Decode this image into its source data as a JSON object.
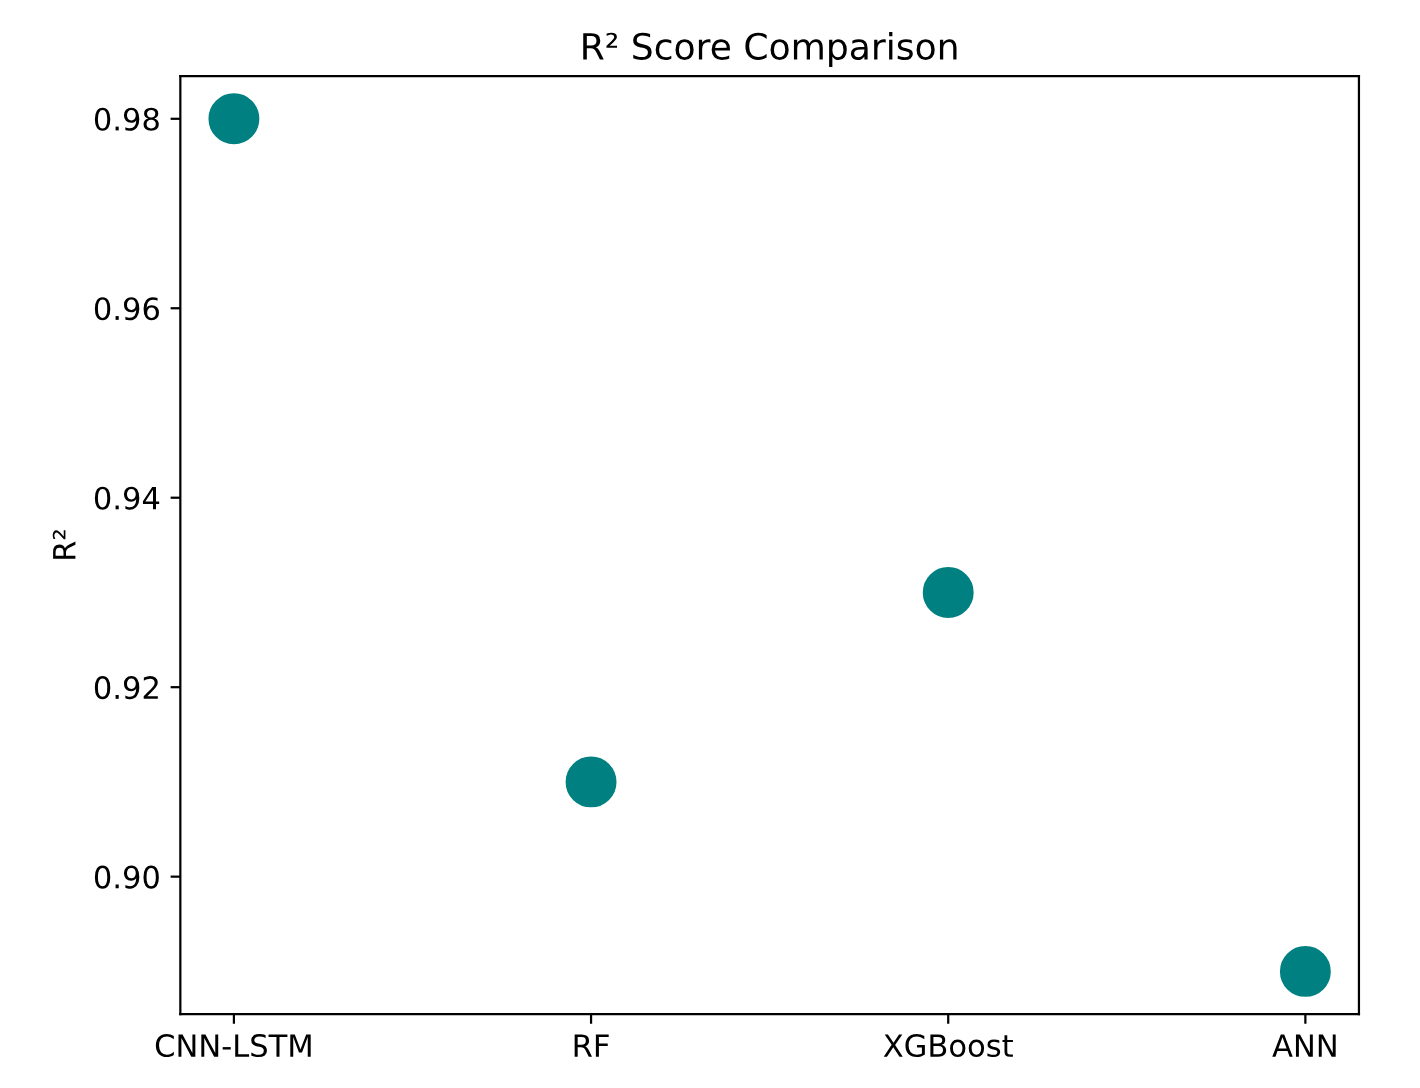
{
  "chart_data": {
    "type": "scatter",
    "title": "R² Score Comparison",
    "ylabel": "R²",
    "categories": [
      "CNN-LSTM",
      "RF",
      "XGBoost",
      "ANN"
    ],
    "series": [
      {
        "color": "#008080",
        "values": [
          0.98,
          0.91,
          0.93,
          0.89
        ]
      }
    ],
    "ylim": [
      0.8855,
      0.9845
    ],
    "yticks": [
      {
        "value": 0.9,
        "label": "0.90"
      },
      {
        "value": 0.92,
        "label": "0.92"
      },
      {
        "value": 0.94,
        "label": "0.94"
      },
      {
        "value": 0.96,
        "label": "0.96"
      },
      {
        "value": 0.98,
        "label": "0.98"
      }
    ],
    "marker": "circle",
    "grid": false,
    "legend": false
  }
}
